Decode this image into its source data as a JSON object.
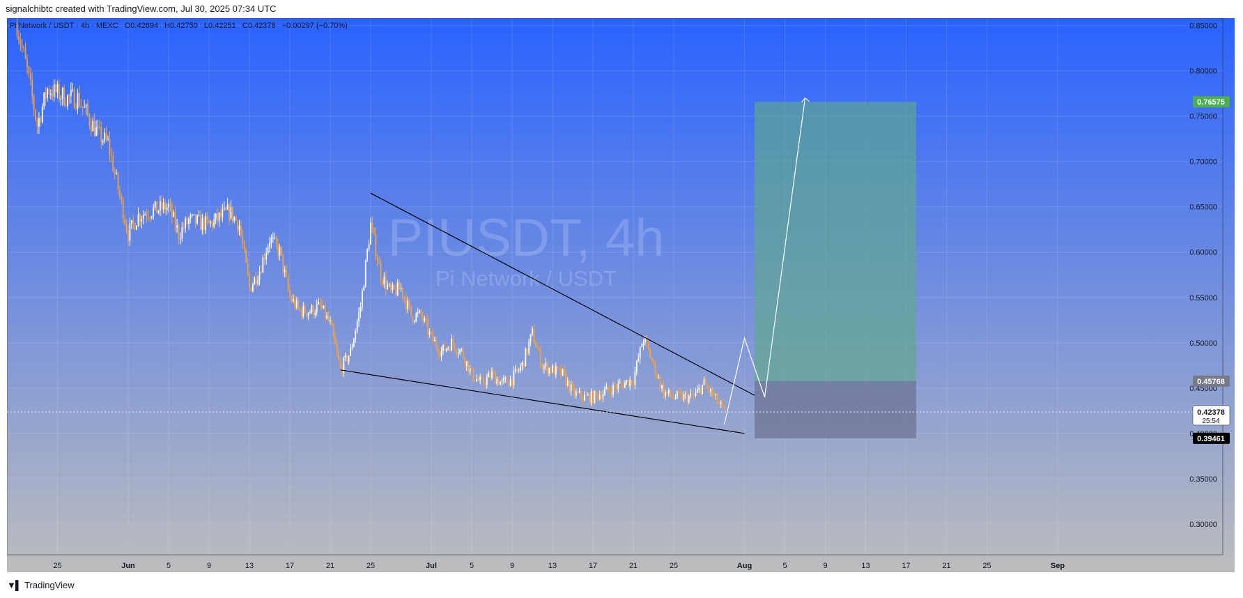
{
  "header": {
    "attribution": "signalchibtc created with TradingView.com, Jul 30, 2025 07:34 UTC"
  },
  "legend": {
    "symbol": "Pi Network / USDT · 4h · MEXC",
    "o_label": "O",
    "o_value": "0.42694",
    "h_label": "H",
    "h_value": "0.42750",
    "l_label": "L",
    "l_value": "0.42251",
    "c_label": "C",
    "c_value": "0.42378",
    "change": "−0.00297 (−0.70%)"
  },
  "watermark": {
    "ticker": "PIUSDT, 4h",
    "name": "Pi Network / USDT"
  },
  "footer": {
    "brand": "TradingView",
    "logo_icon": "tradingview-logo-icon"
  },
  "colors": {
    "bg_top": "#2962ff",
    "bg_bottom": "#bdbdbd",
    "candle_up": "#ffffff",
    "candle_down": "#f7a13a",
    "target_zone": "#5fa98a",
    "stop_zone": "#6d7394",
    "target_badge": "#4caf50",
    "entry_badge": "#787b86",
    "last_badge": "#ffffff",
    "stop_badge": "#000000"
  },
  "chart_data": {
    "type": "candlestick",
    "symbol": "PIUSDT",
    "interval": "4h",
    "x_axis": {
      "ticks": [
        "25",
        "Jun",
        "5",
        "9",
        "13",
        "17",
        "21",
        "25",
        "Jul",
        "5",
        "9",
        "13",
        "17",
        "21",
        "25",
        "Aug",
        "5",
        "9",
        "13",
        "17",
        "21",
        "25",
        "Sep"
      ],
      "tick_dates": [
        "2025-05-25",
        "2025-06-01",
        "2025-06-05",
        "2025-06-09",
        "2025-06-13",
        "2025-06-17",
        "2025-06-21",
        "2025-06-25",
        "2025-07-01",
        "2025-07-05",
        "2025-07-09",
        "2025-07-13",
        "2025-07-17",
        "2025-07-21",
        "2025-07-25",
        "2025-08-01",
        "2025-08-05",
        "2025-08-09",
        "2025-08-13",
        "2025-08-17",
        "2025-08-21",
        "2025-08-25",
        "2025-09-01"
      ]
    },
    "y_axis": {
      "ticks": [
        "0.85000",
        "0.80000",
        "0.75000",
        "0.70000",
        "0.65000",
        "0.60000",
        "0.55000",
        "0.50000",
        "0.45000",
        "0.40000",
        "0.35000",
        "0.30000"
      ],
      "tick_values": [
        0.85,
        0.8,
        0.75,
        0.7,
        0.65,
        0.6,
        0.55,
        0.5,
        0.45,
        0.4,
        0.35,
        0.3
      ],
      "range": [
        0.27,
        0.855
      ]
    },
    "price_path": [
      {
        "date": "2025-05-21",
        "close": 0.85
      },
      {
        "date": "2025-05-22",
        "close": 0.8
      },
      {
        "date": "2025-05-23",
        "close": 0.74
      },
      {
        "date": "2025-05-24",
        "close": 0.78
      },
      {
        "date": "2025-05-26",
        "close": 0.77
      },
      {
        "date": "2025-05-27",
        "close": 0.77
      },
      {
        "date": "2025-05-28",
        "close": 0.75
      },
      {
        "date": "2025-05-29",
        "close": 0.73
      },
      {
        "date": "2025-05-30",
        "close": 0.72
      },
      {
        "date": "2025-05-31",
        "close": 0.67
      },
      {
        "date": "2025-06-01",
        "close": 0.62
      },
      {
        "date": "2025-06-02",
        "close": 0.64
      },
      {
        "date": "2025-06-03",
        "close": 0.645
      },
      {
        "date": "2025-06-05",
        "close": 0.65
      },
      {
        "date": "2025-06-06",
        "close": 0.62
      },
      {
        "date": "2025-06-07",
        "close": 0.635
      },
      {
        "date": "2025-06-09",
        "close": 0.63
      },
      {
        "date": "2025-06-11",
        "close": 0.645
      },
      {
        "date": "2025-06-12",
        "close": 0.63
      },
      {
        "date": "2025-06-13",
        "close": 0.56
      },
      {
        "date": "2025-06-14",
        "close": 0.58
      },
      {
        "date": "2025-06-15",
        "close": 0.615
      },
      {
        "date": "2025-06-16",
        "close": 0.6
      },
      {
        "date": "2025-06-17",
        "close": 0.55
      },
      {
        "date": "2025-06-18",
        "close": 0.535
      },
      {
        "date": "2025-06-19",
        "close": 0.535
      },
      {
        "date": "2025-06-20",
        "close": 0.54
      },
      {
        "date": "2025-06-21",
        "close": 0.52
      },
      {
        "date": "2025-06-22",
        "close": 0.47
      },
      {
        "date": "2025-06-23",
        "close": 0.49
      },
      {
        "date": "2025-06-24",
        "close": 0.54
      },
      {
        "date": "2025-06-25",
        "close": 0.63
      },
      {
        "date": "2025-06-26",
        "close": 0.575
      },
      {
        "date": "2025-06-27",
        "close": 0.555
      },
      {
        "date": "2025-06-28",
        "close": 0.56
      },
      {
        "date": "2025-06-29",
        "close": 0.53
      },
      {
        "date": "2025-06-30",
        "close": 0.53
      },
      {
        "date": "2025-07-01",
        "close": 0.505
      },
      {
        "date": "2025-07-02",
        "close": 0.49
      },
      {
        "date": "2025-07-03",
        "close": 0.5
      },
      {
        "date": "2025-07-04",
        "close": 0.49
      },
      {
        "date": "2025-07-05",
        "close": 0.465
      },
      {
        "date": "2025-07-06",
        "close": 0.455
      },
      {
        "date": "2025-07-07",
        "close": 0.465
      },
      {
        "date": "2025-07-08",
        "close": 0.455
      },
      {
        "date": "2025-07-09",
        "close": 0.46
      },
      {
        "date": "2025-07-10",
        "close": 0.475
      },
      {
        "date": "2025-07-11",
        "close": 0.51
      },
      {
        "date": "2025-07-12",
        "close": 0.475
      },
      {
        "date": "2025-07-13",
        "close": 0.47
      },
      {
        "date": "2025-07-14",
        "close": 0.465
      },
      {
        "date": "2025-07-15",
        "close": 0.445
      },
      {
        "date": "2025-07-16",
        "close": 0.44
      },
      {
        "date": "2025-07-17",
        "close": 0.44
      },
      {
        "date": "2025-07-18",
        "close": 0.445
      },
      {
        "date": "2025-07-19",
        "close": 0.45
      },
      {
        "date": "2025-07-20",
        "close": 0.455
      },
      {
        "date": "2025-07-21",
        "close": 0.46
      },
      {
        "date": "2025-07-22",
        "close": 0.505
      },
      {
        "date": "2025-07-23",
        "close": 0.475
      },
      {
        "date": "2025-07-24",
        "close": 0.445
      },
      {
        "date": "2025-07-25",
        "close": 0.44
      },
      {
        "date": "2025-07-26",
        "close": 0.44
      },
      {
        "date": "2025-07-27",
        "close": 0.44
      },
      {
        "date": "2025-07-28",
        "close": 0.455
      },
      {
        "date": "2025-07-29",
        "close": 0.44
      },
      {
        "date": "2025-07-30",
        "close": 0.424
      }
    ],
    "wedge_lines": [
      {
        "name": "upper",
        "points": [
          {
            "date": "2025-06-25",
            "price": 0.665
          },
          {
            "date": "2025-08-02",
            "price": 0.442
          }
        ]
      },
      {
        "name": "lower",
        "points": [
          {
            "date": "2025-06-22",
            "price": 0.47
          },
          {
            "date": "2025-08-01",
            "price": 0.4
          }
        ]
      }
    ],
    "projection_path": [
      {
        "date": "2025-07-30",
        "price": 0.41
      },
      {
        "date": "2025-08-01",
        "price": 0.505
      },
      {
        "date": "2025-08-03",
        "price": 0.44
      },
      {
        "date": "2025-08-07",
        "price": 0.77
      }
    ],
    "long_position": {
      "start_date": "2025-08-02",
      "end_date": "2025-08-18",
      "target": 0.76575,
      "entry": 0.45768,
      "stop": 0.39461
    },
    "price_labels": {
      "target": "0.76575",
      "entry": "0.45768",
      "last": "0.42378",
      "countdown": "25:54",
      "stop": "0.39461"
    },
    "last_price": 0.42378,
    "grid": true
  }
}
